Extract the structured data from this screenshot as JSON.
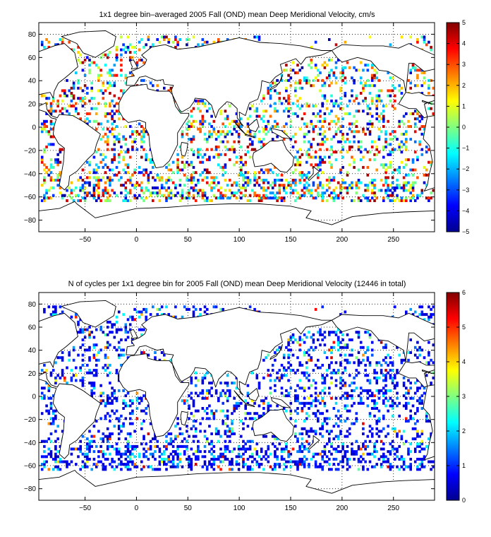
{
  "colors": {
    "jet_stops": [
      "#00008f",
      "#0000ff",
      "#0080ff",
      "#00ffff",
      "#80ff80",
      "#ffff00",
      "#ff8000",
      "#ff0000",
      "#800000"
    ],
    "frame": "#000000",
    "grid": "#000000",
    "land_fill": "#ffffff"
  },
  "chart_data": [
    {
      "type": "heatmap",
      "title": "1x1 degree bin–averaged 2005 Fall (OND) mean Deep Meridional Velocity, cm/s",
      "xlabel": "",
      "ylabel": "",
      "xlim": [
        -95,
        290
      ],
      "ylim": [
        -90,
        90
      ],
      "x_ticks": [
        -50,
        0,
        50,
        100,
        150,
        200,
        250
      ],
      "x_tick_labels": [
        "−50",
        "0",
        "50",
        "100",
        "150",
        "200",
        "250"
      ],
      "y_ticks": [
        80,
        60,
        40,
        20,
        0,
        -20,
        -40,
        -60,
        -80
      ],
      "y_tick_labels": [
        "80",
        "60",
        "40",
        "20",
        "0",
        "−20",
        "−40",
        "−60",
        "−80"
      ],
      "grid": "dotted",
      "colormap": "jet",
      "colorbar": {
        "placement": "right",
        "range": [
          -5,
          5
        ],
        "ticks": [
          5,
          4,
          3,
          2,
          1,
          0,
          -1,
          -2,
          -3,
          -4,
          -5
        ],
        "tick_labels": [
          "5",
          "4",
          "3",
          "2",
          "1",
          "0",
          "−1",
          "−2",
          "−3",
          "−4",
          "−5"
        ]
      },
      "values_description_range": [
        -5,
        5
      ]
    },
    {
      "type": "heatmap",
      "title": "N of cycles per 1x1 degree bin for 2005 Fall (OND) mean Deep Meridional Velocity (12446 in total)",
      "xlabel": "",
      "ylabel": "",
      "xlim": [
        -95,
        290
      ],
      "ylim": [
        -90,
        90
      ],
      "x_ticks": [
        -50,
        0,
        50,
        100,
        150,
        200,
        250
      ],
      "x_tick_labels": [
        "−50",
        "0",
        "50",
        "100",
        "150",
        "200",
        "250"
      ],
      "y_ticks": [
        80,
        60,
        40,
        20,
        0,
        -20,
        -40,
        -60,
        -80
      ],
      "y_tick_labels": [
        "80",
        "60",
        "40",
        "20",
        "0",
        "−20",
        "−40",
        "−60",
        "−80"
      ],
      "grid": "dotted",
      "colormap": "jet",
      "colorbar": {
        "placement": "right",
        "range": [
          0,
          6
        ],
        "ticks": [
          6,
          5,
          4,
          3,
          2,
          1,
          0
        ],
        "tick_labels": [
          "6",
          "5",
          "4",
          "3",
          "2",
          "1",
          "0"
        ]
      },
      "total_cycles": 12446
    }
  ]
}
